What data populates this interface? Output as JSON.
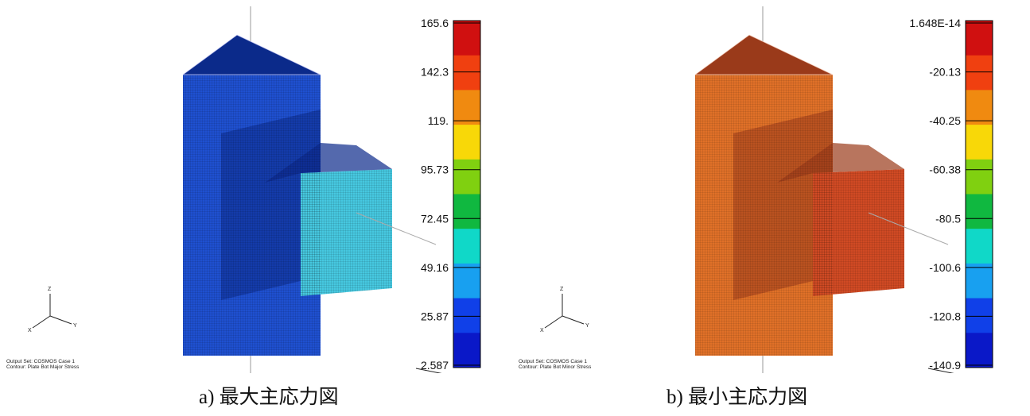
{
  "panels": [
    {
      "id": "a",
      "caption": "a)  最大主応力図",
      "status_line1": "Output Set: COSMOS Case 1",
      "status_line2": "Contour: Plate Bot Major Stress",
      "legend_values": [
        "165.6",
        "142.3",
        "119.",
        "95.73",
        "72.45",
        "49.16",
        "25.87",
        "2.587"
      ],
      "body_color": "#1f50d0",
      "shade_color": "#0b2a8a",
      "branch_color": "#46c8e0"
    },
    {
      "id": "b",
      "caption": "b)  最小主応力図",
      "status_line1": "Output Set: COSMOS Case 1",
      "status_line2": "Contour: Plate Bot Minor Stress",
      "legend_values": [
        "1.648E-14",
        "-20.13",
        "-40.25",
        "-60.38",
        "-80.5",
        "-100.6",
        "-120.8",
        "-140.9"
      ],
      "body_color": "#e07028",
      "shade_color": "#9a3a1a",
      "branch_color": "#d04a24"
    }
  ],
  "axes_labels": {
    "x": "X",
    "y": "Y",
    "z": "Z"
  },
  "colormap": [
    "#d01010",
    "#f04010",
    "#f08a10",
    "#f8d808",
    "#80d010",
    "#10b840",
    "#10d8c8",
    "#18a0f0",
    "#1040e8",
    "#0a18c8"
  ]
}
